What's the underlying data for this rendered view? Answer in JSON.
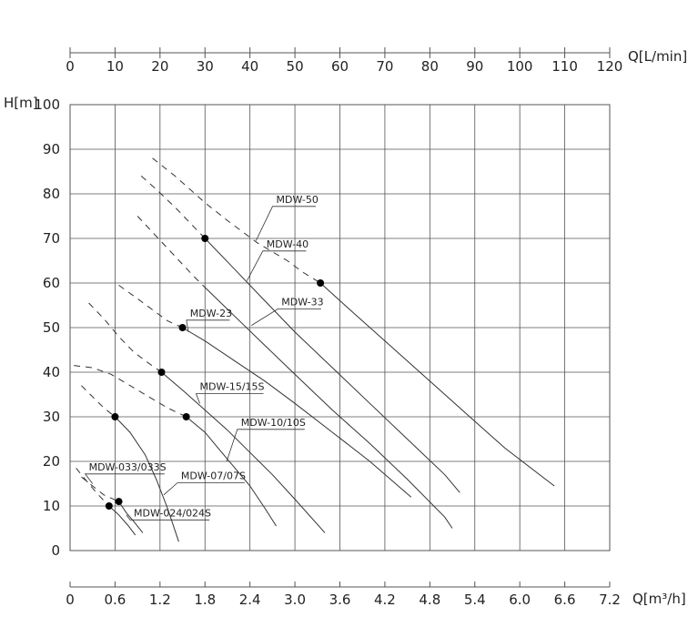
{
  "chart_data": {
    "type": "line",
    "xlabel": "Q[m³/h]",
    "x2label": "Q[L/min]",
    "ylabel": "H[m]",
    "xlim": [
      0,
      7.2
    ],
    "ylim": [
      0,
      100
    ],
    "x2lim": [
      0,
      120
    ],
    "grid": true,
    "x_ticks": [
      "0",
      "0.6",
      "1.2",
      "1.8",
      "2.4",
      "3.0",
      "3.6",
      "4.2",
      "4.8",
      "5.4",
      "6.0",
      "6.6",
      "7.2"
    ],
    "y_ticks": [
      "0",
      "10",
      "20",
      "30",
      "40",
      "50",
      "60",
      "70",
      "80",
      "90",
      "100"
    ],
    "x2_ticks": [
      "0",
      "10",
      "20",
      "30",
      "40",
      "50",
      "60",
      "70",
      "80",
      "90",
      "100",
      "110",
      "120"
    ],
    "series": [
      {
        "name": "MDW-50",
        "dashed_x": [
          1.1,
          1.4,
          1.8,
          2.1,
          2.5,
          2.9,
          3.1,
          3.34
        ],
        "dashed_y": [
          88,
          84,
          78,
          74,
          69,
          65,
          62.5,
          60
        ],
        "solid_x": [
          3.34,
          3.8,
          4.3,
          4.8,
          5.3,
          5.8,
          6.46
        ],
        "solid_y": [
          60,
          53,
          45.5,
          38,
          30.5,
          23,
          14.5
        ],
        "marker": [
          3.34,
          60
        ]
      },
      {
        "name": "MDW-40",
        "dashed_x": [
          0.95,
          1.15,
          1.4,
          1.6,
          1.8
        ],
        "dashed_y": [
          84,
          81,
          77,
          73.5,
          70
        ],
        "solid_x": [
          1.8,
          2.2,
          2.6,
          3.0,
          3.5,
          4.0,
          4.5,
          5.0,
          5.2
        ],
        "solid_y": [
          70,
          63,
          56,
          49,
          41,
          33,
          25,
          17,
          13
        ]
      },
      {
        "name": "MDW-33",
        "dashed_x": [
          0.9,
          1.15,
          1.4,
          1.65,
          1.8
        ],
        "dashed_y": [
          75,
          70.5,
          66,
          61.5,
          59
        ],
        "solid_x": [
          1.8,
          2.2,
          2.6,
          3.0,
          3.5,
          4.0,
          4.5,
          5.0,
          5.1
        ],
        "solid_y": [
          59,
          52.5,
          46,
          39.5,
          31.5,
          24,
          16,
          7.5,
          5
        ]
      },
      {
        "name": "MDW-23",
        "dashed_x": [
          0.65,
          0.9,
          1.1,
          1.3,
          1.5
        ],
        "dashed_y": [
          59.5,
          56.5,
          54,
          51.5,
          50
        ],
        "solid_x": [
          1.5,
          1.8,
          2.2,
          2.6,
          3.0,
          3.5,
          4.0,
          4.55
        ],
        "solid_y": [
          50,
          47,
          42.5,
          38,
          33,
          26.5,
          20,
          12
        ]
      },
      {
        "name": "MDW-15/15S",
        "dashed_x": [
          0.25,
          0.45,
          0.65,
          0.85,
          1.05,
          1.22
        ],
        "dashed_y": [
          55.5,
          52,
          48,
          44.5,
          42,
          40
        ],
        "solid_x": [
          1.22,
          1.5,
          1.8,
          2.1,
          2.4,
          2.7,
          3.0,
          3.4
        ],
        "solid_y": [
          40,
          36,
          31.5,
          27,
          22,
          17,
          11.5,
          4
        ]
      },
      {
        "name": "MDW-10/10S",
        "dashed_x": [
          0.05,
          0.3,
          0.55,
          0.8,
          1.05,
          1.3,
          1.55
        ],
        "dashed_y": [
          41.5,
          41,
          39.5,
          37,
          34.5,
          32,
          30
        ],
        "solid_x": [
          1.55,
          1.8,
          2.0,
          2.2,
          2.4,
          2.6,
          2.75
        ],
        "solid_y": [
          30,
          26.5,
          22.5,
          18.5,
          14.5,
          9.5,
          5.5
        ]
      },
      {
        "name": "MDW-07/07S",
        "dashed_x": [
          0.15,
          0.3,
          0.45,
          0.6
        ],
        "dashed_y": [
          37,
          34.5,
          32,
          30
        ],
        "solid_x": [
          0.6,
          0.8,
          1.0,
          1.15,
          1.3,
          1.45
        ],
        "solid_y": [
          30,
          26.5,
          21.5,
          16,
          9.5,
          2
        ]
      },
      {
        "name": "MDW-033/033S",
        "dashed_x": [
          0.08,
          0.2,
          0.35,
          0.52
        ],
        "dashed_y": [
          18.5,
          16,
          13,
          10
        ],
        "solid_x": [
          0.52,
          0.65,
          0.78,
          0.87
        ],
        "solid_y": [
          10,
          8,
          5.5,
          3.5
        ]
      },
      {
        "name": "MDW-024/024S",
        "dashed_x": [
          0.15,
          0.3,
          0.45,
          0.65
        ],
        "dashed_y": [
          16.5,
          14.5,
          12.5,
          11
        ],
        "solid_x": [
          0.65,
          0.75,
          0.85,
          0.97
        ],
        "solid_y": [
          11,
          8.5,
          6.5,
          4
        ]
      }
    ],
    "markers": [
      {
        "x": 1.8,
        "y": 70
      },
      {
        "x": 3.34,
        "y": 60
      },
      {
        "x": 1.5,
        "y": 50
      },
      {
        "x": 1.22,
        "y": 40
      },
      {
        "x": 0.6,
        "y": 30
      },
      {
        "x": 1.55,
        "y": 30
      },
      {
        "x": 0.65,
        "y": 11
      },
      {
        "x": 0.52,
        "y": 10
      }
    ],
    "labels": [
      {
        "text": "MDW-50",
        "x": 2.75,
        "y": 78,
        "anchor_x": 2.48,
        "anchor_y": 69.5
      },
      {
        "text": "MDW-40",
        "x": 2.62,
        "y": 68,
        "anchor_x": 2.36,
        "anchor_y": 60.5
      },
      {
        "text": "MDW-33",
        "x": 2.82,
        "y": 55,
        "anchor_x": 2.42,
        "anchor_y": 50.5
      },
      {
        "text": "MDW-23",
        "x": 1.6,
        "y": 52.5,
        "anchor_x": 1.58,
        "anchor_y": 49
      },
      {
        "text": "MDW-15/15S",
        "x": 1.73,
        "y": 36,
        "anchor_x": 1.73,
        "anchor_y": 33
      },
      {
        "text": "MDW-10/10S",
        "x": 2.28,
        "y": 28,
        "anchor_x": 2.09,
        "anchor_y": 20
      },
      {
        "text": "MDW-033/033S",
        "x": 0.25,
        "y": 18,
        "anchor_x": 0.3,
        "anchor_y": 15
      },
      {
        "text": "MDW-07/07S",
        "x": 1.48,
        "y": 16,
        "anchor_x": 1.25,
        "anchor_y": 12.5
      },
      {
        "text": "MDW-024/024S",
        "x": 0.85,
        "y": 7.7,
        "anchor_x": 0.75,
        "anchor_y": 8
      }
    ]
  }
}
